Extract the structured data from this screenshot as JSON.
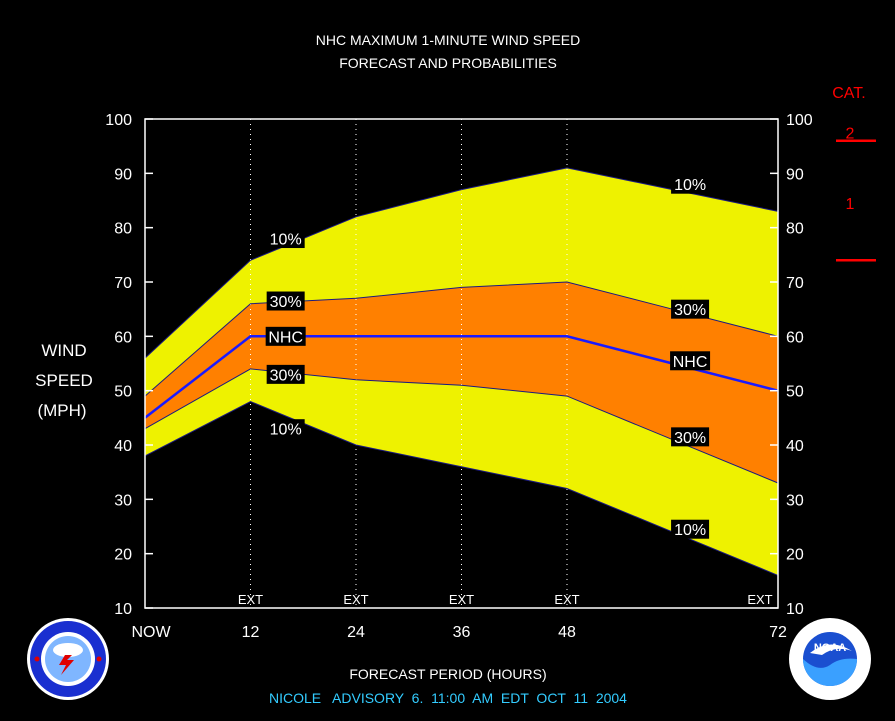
{
  "chart_data": {
    "type": "area",
    "title": "NHC MAXIMUM 1-MINUTE WIND SPEED",
    "subtitle": "FORECAST AND PROBABILITIES",
    "ylabel_lines": [
      "WIND",
      "SPEED",
      "(MPH)"
    ],
    "xlabel": "FORECAST PERIOD (HOURS)",
    "footer": "NICOLE   ADVISORY  6.  11:00  AM  EDT  OCT  11  2004",
    "ylim": [
      10,
      100
    ],
    "xlim": [
      0,
      72
    ],
    "y_ticks": [
      10,
      20,
      30,
      40,
      50,
      60,
      70,
      80,
      90,
      100
    ],
    "x_ticks": [
      {
        "x": 0,
        "label": "NOW"
      },
      {
        "x": 12,
        "label": "12"
      },
      {
        "x": 24,
        "label": "24"
      },
      {
        "x": 36,
        "label": "36"
      },
      {
        "x": 48,
        "label": "48"
      },
      {
        "x": 72,
        "label": "72"
      }
    ],
    "ext_markers": [
      {
        "x": 12,
        "label": "EXT"
      },
      {
        "x": 24,
        "label": "EXT"
      },
      {
        "x": 36,
        "label": "EXT"
      },
      {
        "x": 48,
        "label": "EXT"
      },
      {
        "x": 72,
        "label": "EXT"
      }
    ],
    "x": [
      0,
      12,
      24,
      36,
      48,
      60,
      72
    ],
    "series": [
      {
        "name": "10%",
        "role": "upper",
        "values": [
          56,
          74,
          82,
          87,
          91,
          87,
          83
        ],
        "fill": "#eef200"
      },
      {
        "name": "30%",
        "role": "upper",
        "values": [
          49,
          66,
          67,
          69,
          70,
          65,
          60
        ],
        "fill": "#ff8000"
      },
      {
        "name": "NHC",
        "role": "center",
        "values": [
          45,
          60,
          60,
          60,
          60,
          55,
          50
        ],
        "color": "#1a1aff"
      },
      {
        "name": "30%",
        "role": "lower",
        "values": [
          43,
          54,
          52,
          51,
          49,
          41,
          33
        ]
      },
      {
        "name": "10%",
        "role": "lower",
        "values": [
          38,
          48,
          40,
          36,
          32,
          24,
          16
        ]
      }
    ],
    "band_labels": [
      {
        "text": "10%",
        "x": 16,
        "y": 78
      },
      {
        "text": "30%",
        "x": 16,
        "y": 66.5
      },
      {
        "text": "NHC",
        "x": 16,
        "y": 60
      },
      {
        "text": "30%",
        "x": 16,
        "y": 53
      },
      {
        "text": "10%",
        "x": 16,
        "y": 43
      },
      {
        "text": "10%",
        "x": 62,
        "y": 88
      },
      {
        "text": "30%",
        "x": 62,
        "y": 65
      },
      {
        "text": "NHC",
        "x": 62,
        "y": 55.5
      },
      {
        "text": "30%",
        "x": 62,
        "y": 41.5
      },
      {
        "text": "10%",
        "x": 62,
        "y": 24.5
      }
    ],
    "category_scale": {
      "title": "CAT.",
      "color": "#ff0000",
      "labels": [
        {
          "text": "2",
          "y": 97.5
        },
        {
          "text": "1",
          "y": 84.5
        }
      ],
      "thresholds": [
        96,
        74
      ]
    },
    "colors": {
      "grid": "#ffffff",
      "text": "#ffffff",
      "footer": "#33ccff"
    },
    "grid": "vertical dotted at 12-hour forecast times",
    "legend": "none"
  },
  "logos": {
    "left": {
      "icon": "nws-logo-icon",
      "text": "NATIONAL WEATHER SERVICE"
    },
    "right": {
      "icon": "noaa-logo-icon",
      "text": "NOAA"
    }
  }
}
